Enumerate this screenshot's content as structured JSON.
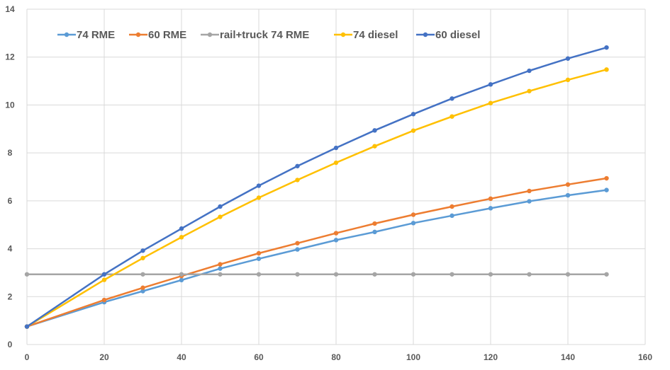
{
  "chart_data": {
    "type": "line",
    "title": "",
    "xlabel": "",
    "ylabel": "",
    "xlim": [
      0,
      160
    ],
    "ylim": [
      0,
      14
    ],
    "x_ticks": [
      0,
      20,
      40,
      60,
      80,
      100,
      120,
      140,
      160
    ],
    "y_ticks": [
      0,
      2,
      4,
      6,
      8,
      10,
      12,
      14
    ],
    "grid": true,
    "legend_position": "top-left",
    "x": [
      0,
      20,
      30,
      40,
      50,
      60,
      70,
      80,
      90,
      100,
      110,
      120,
      130,
      140,
      150
    ],
    "series": [
      {
        "name": "74 RME",
        "color": "#5B9BD5",
        "values": [
          0.75,
          1.77,
          2.23,
          2.69,
          3.17,
          3.58,
          3.97,
          4.36,
          4.7,
          5.07,
          5.38,
          5.69,
          5.98,
          6.23,
          6.45
        ]
      },
      {
        "name": "60 RME",
        "color": "#ED7D31",
        "values": [
          0.75,
          1.86,
          2.37,
          2.86,
          3.35,
          3.81,
          4.23,
          4.65,
          5.05,
          5.42,
          5.76,
          6.09,
          6.41,
          6.68,
          6.94
        ]
      },
      {
        "name": "rail+truck 74 RME",
        "color": "#A5A5A5",
        "values": [
          2.93,
          2.93,
          2.93,
          2.93,
          2.93,
          2.93,
          2.93,
          2.93,
          2.93,
          2.93,
          2.93,
          2.93,
          2.93,
          2.93,
          2.93
        ]
      },
      {
        "name": "74 diesel",
        "color": "#FFC000",
        "values": [
          0.75,
          2.7,
          3.61,
          4.48,
          5.33,
          6.13,
          6.87,
          7.59,
          8.28,
          8.93,
          9.52,
          10.08,
          10.58,
          11.05,
          11.48
        ]
      },
      {
        "name": "60 diesel",
        "color": "#4472C4",
        "values": [
          0.75,
          2.93,
          3.92,
          4.84,
          5.76,
          6.63,
          7.45,
          8.21,
          8.94,
          9.62,
          10.27,
          10.86,
          11.43,
          11.94,
          12.4
        ]
      }
    ]
  },
  "colors": {
    "gridline": "#D9D9D9",
    "axis_text": "#595959"
  }
}
